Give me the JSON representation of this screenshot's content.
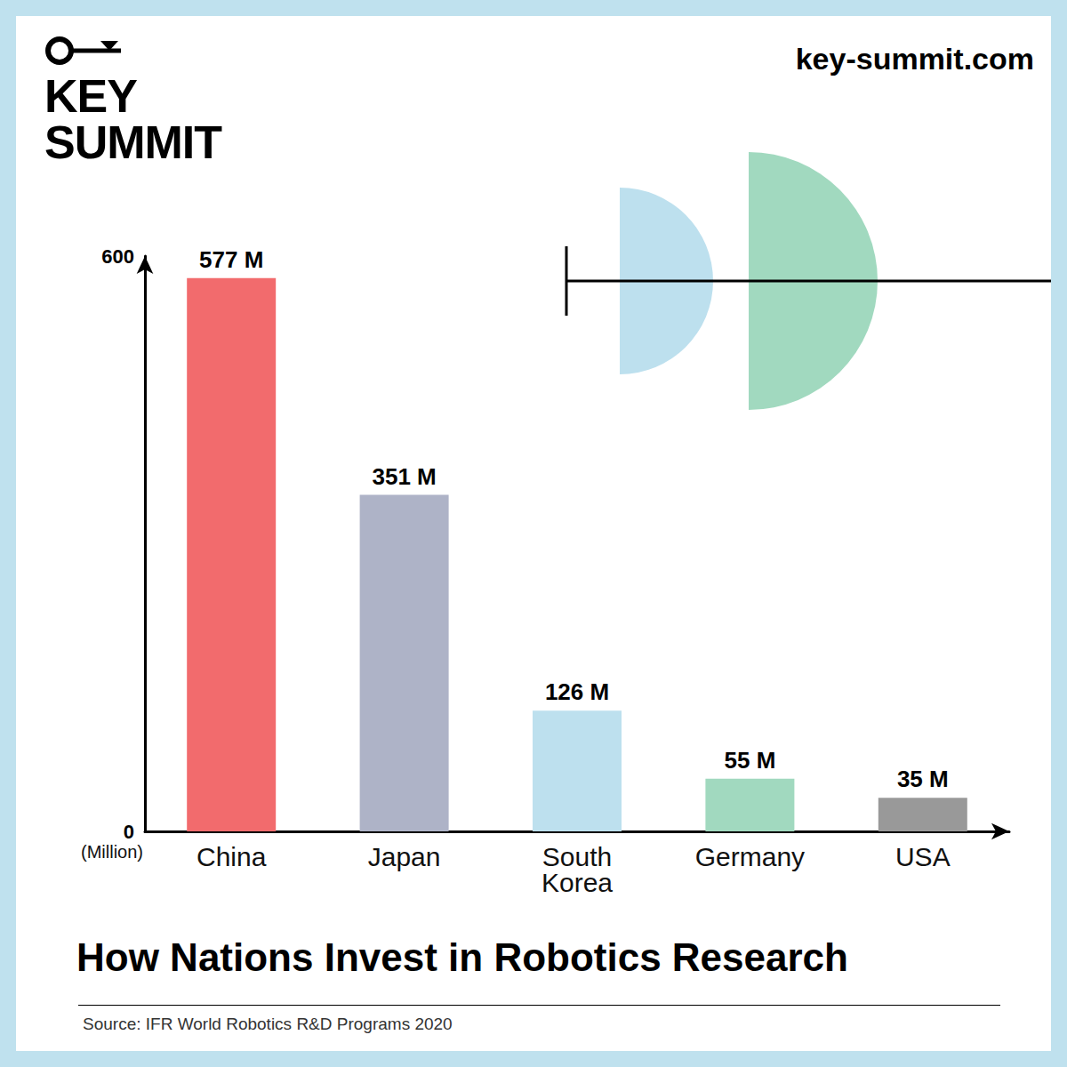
{
  "chart_data": {
    "type": "bar",
    "title": "How Nations Invest in Robotics Research",
    "source": "Source: IFR World Robotics R&D Programs 2020",
    "brand": [
      "KEY",
      "SUMMIT"
    ],
    "website": "key-summit.com",
    "ylabel": "(Million)",
    "categories": [
      "China",
      "Japan",
      "South Korea",
      "Germany",
      "USA"
    ],
    "values": [
      577,
      351,
      126,
      55,
      35
    ],
    "value_labels": [
      "577 M",
      "351 M",
      "126 M",
      "55 M",
      "35 M"
    ],
    "colors": [
      "#f26b6d",
      "#aeb3c7",
      "#bde0ee",
      "#a1d9bf",
      "#999999"
    ],
    "ylim": [
      0,
      600
    ],
    "yticks": [
      0,
      600
    ],
    "grid": false,
    "data_labels": true
  }
}
